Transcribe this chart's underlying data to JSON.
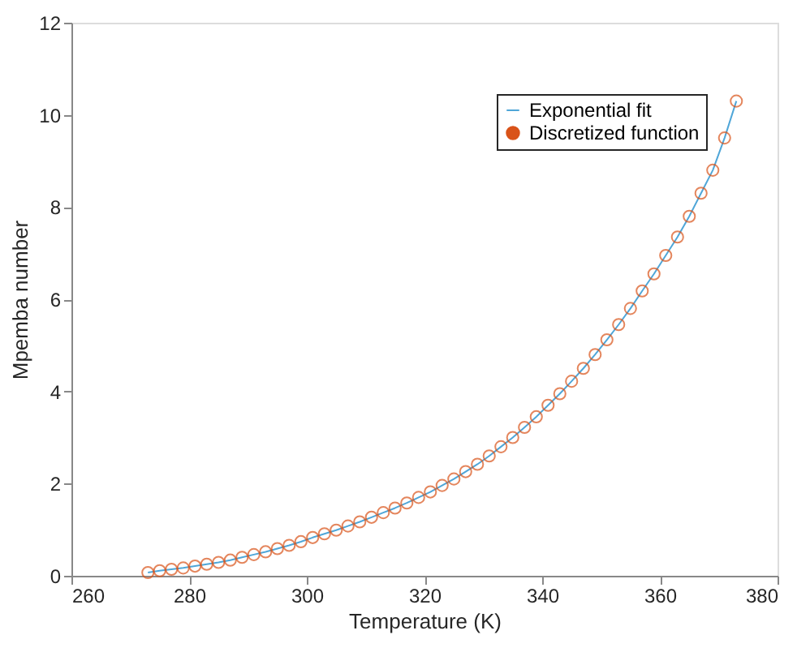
{
  "chart_data": {
    "type": "scatter",
    "xlabel": "Temperature (K)",
    "ylabel": "Mpemba number",
    "xlim": [
      260,
      380
    ],
    "xticks": [
      260,
      280,
      300,
      320,
      340,
      360,
      380
    ],
    "ylim": [
      0,
      12
    ],
    "yticks": [
      0,
      2,
      4,
      6,
      8,
      10,
      12
    ],
    "grid": false,
    "legend": "top right",
    "x": [
      273,
      275,
      277,
      279,
      281,
      283,
      285,
      287,
      289,
      291,
      293,
      295,
      297,
      299,
      301,
      303,
      305,
      307,
      309,
      311,
      313,
      315,
      317,
      319,
      321,
      323,
      325,
      327,
      329,
      331,
      333,
      335,
      337,
      339,
      341,
      343,
      345,
      347,
      349,
      351,
      353,
      355,
      357,
      359,
      361,
      363,
      365,
      367,
      369,
      371,
      373
    ],
    "series": [
      {
        "name": "Exponential fit",
        "type": "line",
        "color": "#4fa6d8",
        "marker": "none",
        "line_style": "solid",
        "values": [
          0.07,
          0.11,
          0.14,
          0.17,
          0.21,
          0.25,
          0.29,
          0.34,
          0.4,
          0.46,
          0.52,
          0.59,
          0.66,
          0.74,
          0.83,
          0.91,
          0.99,
          1.08,
          1.17,
          1.27,
          1.37,
          1.47,
          1.58,
          1.7,
          1.82,
          1.96,
          2.1,
          2.26,
          2.42,
          2.6,
          2.8,
          3.0,
          3.22,
          3.45,
          3.7,
          3.95,
          4.22,
          4.5,
          4.8,
          5.12,
          5.45,
          5.8,
          6.18,
          6.55,
          6.95,
          7.35,
          7.8,
          8.3,
          8.8,
          9.5,
          10.3
        ]
      },
      {
        "name": "Discretized function",
        "color": "#d95319",
        "marker": "circle",
        "values": [
          0.07,
          0.11,
          0.14,
          0.17,
          0.21,
          0.25,
          0.29,
          0.34,
          0.4,
          0.46,
          0.52,
          0.59,
          0.66,
          0.74,
          0.83,
          0.91,
          0.99,
          1.08,
          1.17,
          1.27,
          1.37,
          1.47,
          1.58,
          1.7,
          1.82,
          1.96,
          2.1,
          2.26,
          2.42,
          2.6,
          2.8,
          3.0,
          3.22,
          3.45,
          3.7,
          3.95,
          4.22,
          4.5,
          4.8,
          5.12,
          5.45,
          5.8,
          6.18,
          6.55,
          6.95,
          7.35,
          7.8,
          8.3,
          8.8,
          9.5,
          10.3
        ]
      }
    ]
  }
}
